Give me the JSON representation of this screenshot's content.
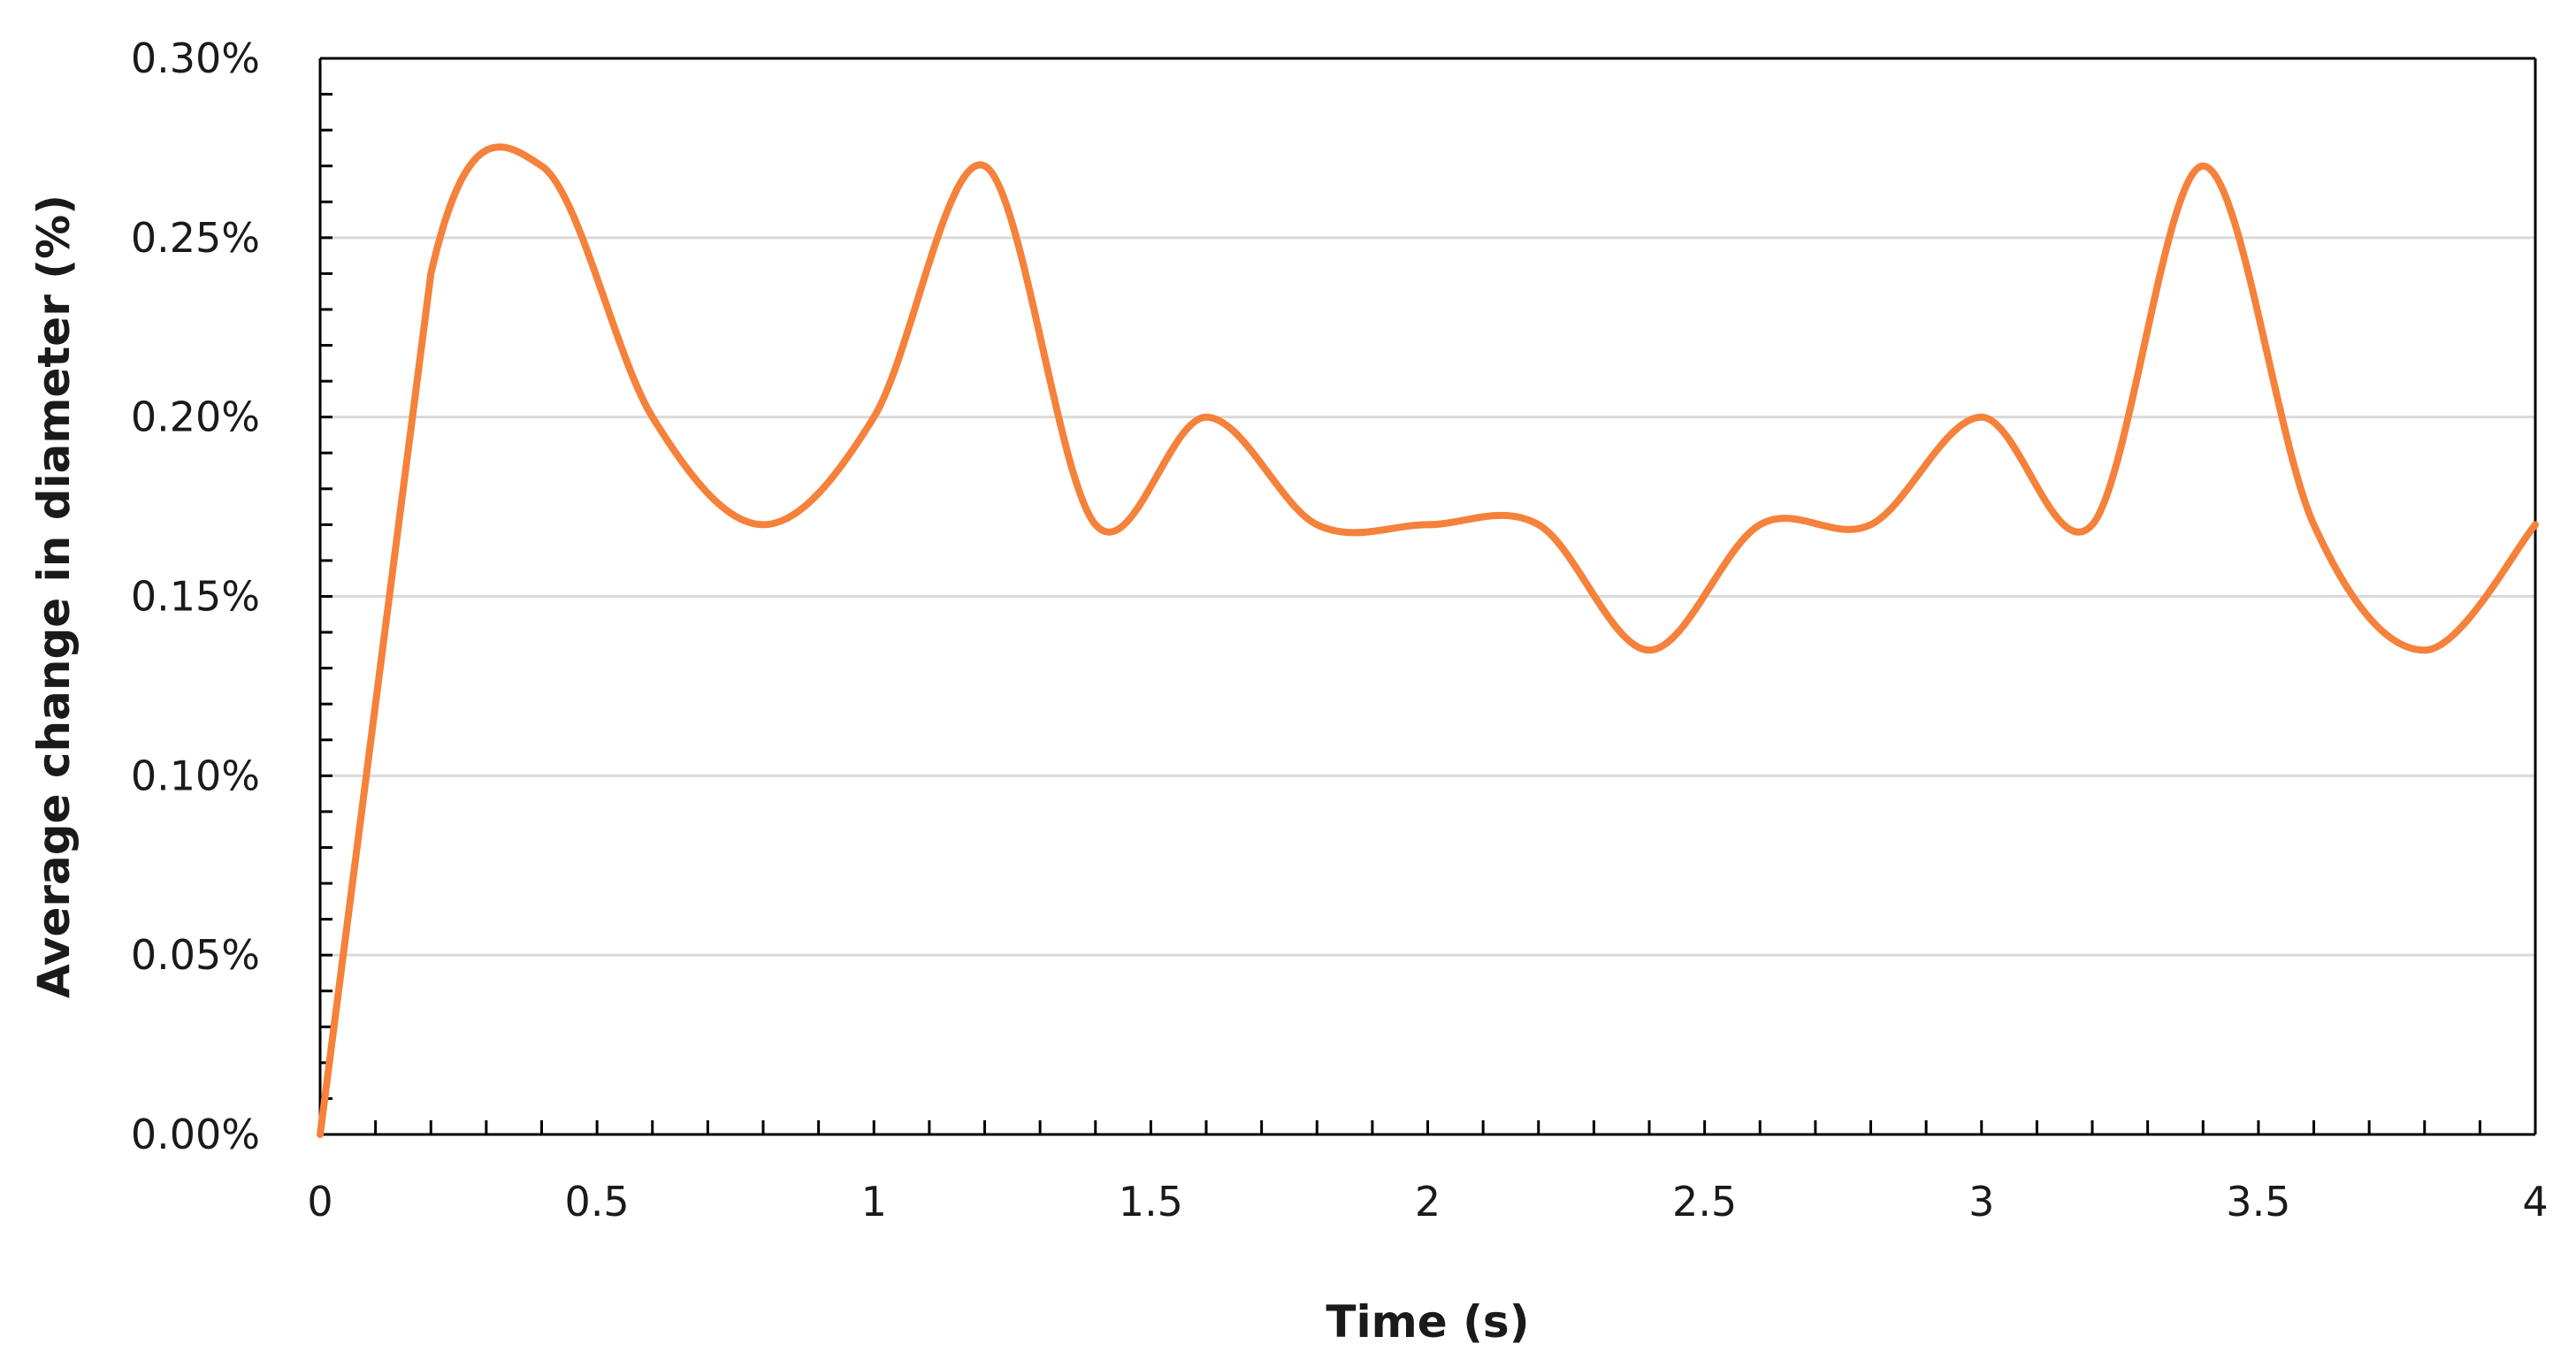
{
  "chart_data": {
    "type": "line",
    "title": "",
    "xlabel": "Time (s)",
    "ylabel": "Average change  in diameter (%)",
    "xlim": [
      0,
      4
    ],
    "ylim": [
      0,
      0.3
    ],
    "x_ticks": [
      "0",
      "0.5",
      "1",
      "1.5",
      "2",
      "2.5",
      "3",
      "3.5",
      "4"
    ],
    "y_ticks": [
      "0.00%",
      "0.05%",
      "0.10%",
      "0.15%",
      "0.20%",
      "0.25%",
      "0.30%"
    ],
    "grid": "horizontal",
    "colors": {
      "line": "#f5813a",
      "grid": "#d9d9d9",
      "axis": "#000000"
    },
    "series": [
      {
        "x": [
          0,
          0.2,
          0.4,
          0.6,
          0.8,
          1.0,
          1.2,
          1.4,
          1.6,
          1.8,
          2.0,
          2.2,
          2.4,
          2.6,
          2.8,
          3.0,
          3.2,
          3.4,
          3.6,
          3.8,
          4.0
        ],
        "values": [
          0,
          0.24,
          0.27,
          0.2,
          0.17,
          0.2,
          0.27,
          0.17,
          0.2,
          0.17,
          0.17,
          0.17,
          0.135,
          0.17,
          0.17,
          0.2,
          0.17,
          0.27,
          0.17,
          0.135,
          0.17
        ]
      }
    ]
  }
}
